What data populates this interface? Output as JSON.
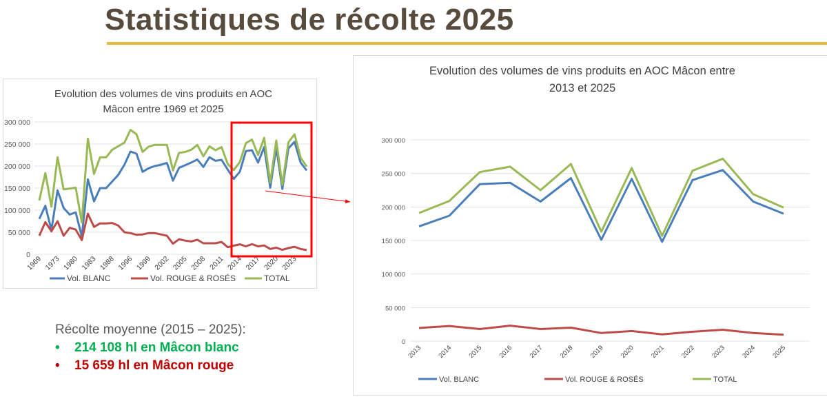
{
  "title": "Statistiques de récolte 2025",
  "summary": {
    "heading": "Récolte moyenne (2015 – 2025):",
    "items": [
      {
        "text": "214 108 hl en Mâcon blanc",
        "color": "#00b050"
      },
      {
        "text": "15 659 hl en Mâcon rouge",
        "color": "#c00000"
      }
    ]
  },
  "colors": {
    "blanc": "#4a7ebb",
    "rouge": "#be4b48",
    "total": "#98b954",
    "highlight": "#ff0000",
    "title": "#564b3c",
    "rule": "#e8bc3a"
  },
  "chart_data": [
    {
      "type": "line",
      "title": [
        "Evolution des volumes de vins produits en AOC",
        "Mâcon entre 1969 et 2025"
      ],
      "tick_labels": [
        "1969",
        "1973",
        "1980",
        "1983",
        "1988",
        "1996",
        "1999",
        "2002",
        "2005",
        "2008",
        "2011",
        "2014",
        "2017",
        "2020",
        "2023"
      ],
      "ylim": [
        0,
        300000
      ],
      "yticks": [
        "0",
        "50 000",
        "100 000",
        "150 000",
        "200 000",
        "250 000",
        "300 000"
      ],
      "grid": true,
      "legend": "bottom",
      "highlight": "2013–2025",
      "series": [
        {
          "name": "Vol. BLANC",
          "color": "#4a7ebb",
          "values": [
            80000,
            110000,
            55000,
            145000,
            105000,
            90000,
            95000,
            40000,
            170000,
            120000,
            150000,
            150000,
            165000,
            180000,
            203000,
            233000,
            228000,
            187000,
            195000,
            200000,
            203000,
            207000,
            167000,
            196000,
            202000,
            208000,
            215000,
            198000,
            220000,
            212000,
            214000,
            192000,
            171000,
            187000,
            234000,
            236000,
            208000,
            243000,
            151000,
            242000,
            148000,
            240000,
            255000,
            208000,
            190000
          ]
        },
        {
          "name": "Vol. ROUGE & ROSÉS",
          "color": "#be4b48",
          "values": [
            42000,
            73000,
            52000,
            75000,
            42000,
            60000,
            56000,
            32000,
            92000,
            62000,
            70000,
            70000,
            71000,
            65000,
            50000,
            48000,
            44000,
            45000,
            48000,
            48000,
            45000,
            42000,
            24000,
            34000,
            31000,
            29000,
            33000,
            25000,
            25000,
            25000,
            28000,
            16000,
            19500,
            22500,
            18000,
            23000,
            18000,
            20000,
            12000,
            15000,
            10000,
            14000,
            17000,
            12000,
            9500
          ]
        },
        {
          "name": "TOTAL",
          "color": "#98b954",
          "values": [
            122000,
            184000,
            108000,
            220000,
            147000,
            149000,
            151000,
            72000,
            262000,
            182000,
            220000,
            220000,
            237000,
            245000,
            253000,
            282000,
            272000,
            232000,
            244000,
            248000,
            248000,
            248000,
            190000,
            230000,
            232000,
            237000,
            248000,
            222000,
            245000,
            236000,
            243000,
            205000,
            191000,
            209000,
            252000,
            260000,
            225000,
            264000,
            163000,
            258000,
            157000,
            254000,
            272000,
            219000,
            199000
          ]
        }
      ]
    },
    {
      "type": "line",
      "title": [
        "Evolution des volumes de vins produits en AOC Mâcon entre",
        "2013 et 2025"
      ],
      "categories": [
        "2013",
        "2014",
        "2015",
        "2016",
        "2017",
        "2018",
        "2019",
        "2020",
        "2021",
        "2022",
        "2023",
        "2024",
        "2025"
      ],
      "ylim": [
        0,
        300000
      ],
      "yticks": [
        "0",
        "50 000",
        "100 000",
        "150 000",
        "200 000",
        "250 000",
        "300 000"
      ],
      "grid": true,
      "legend": "bottom",
      "series": [
        {
          "name": "Vol. BLANC",
          "color": "#4a7ebb",
          "values": [
            171000,
            187000,
            234000,
            236000,
            208000,
            243000,
            151000,
            242000,
            148000,
            240000,
            255000,
            208000,
            190000
          ]
        },
        {
          "name": "Vol. ROUGE & ROSÉS",
          "color": "#be4b48",
          "values": [
            19500,
            22500,
            18000,
            23000,
            18000,
            20000,
            12000,
            15000,
            10000,
            14000,
            17000,
            12000,
            9500
          ]
        },
        {
          "name": "TOTAL",
          "color": "#98b954",
          "values": [
            191000,
            209000,
            252000,
            260000,
            225000,
            264000,
            163000,
            258000,
            157000,
            254000,
            272000,
            219000,
            199000
          ]
        }
      ]
    }
  ]
}
